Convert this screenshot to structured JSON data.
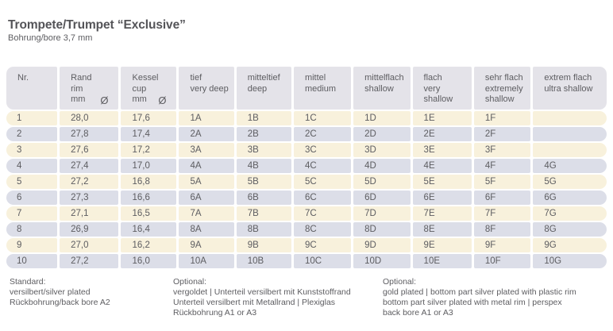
{
  "page": {
    "title": "Trompete/Trumpet “Exclusive”",
    "subtitle": "Bohrung/bore 3,7 mm"
  },
  "colors": {
    "header_bg": "#e4e3e9",
    "row_odd_bg": "#f8f1dc",
    "row_even_bg": "#dcdee8",
    "text": "#5d5d61",
    "title": "#545458"
  },
  "table": {
    "diameter_symbol": "Ø",
    "columns": [
      {
        "id": "nr",
        "lines": [
          "Nr."
        ],
        "diameter": false
      },
      {
        "id": "rand",
        "lines": [
          "Rand",
          "rim",
          "mm"
        ],
        "diameter": true
      },
      {
        "id": "kessel",
        "lines": [
          "Kessel",
          "cup",
          "mm"
        ],
        "diameter": true
      },
      {
        "id": "tief",
        "lines": [
          "tief",
          "very deep"
        ],
        "diameter": false
      },
      {
        "id": "mitteltief",
        "lines": [
          "mitteltief",
          "deep"
        ],
        "diameter": false
      },
      {
        "id": "mittel",
        "lines": [
          "mittel",
          "medium"
        ],
        "diameter": false
      },
      {
        "id": "mittelflach",
        "lines": [
          "mittelflach",
          "shallow"
        ],
        "diameter": false
      },
      {
        "id": "flach",
        "lines": [
          "flach",
          "very shallow"
        ],
        "diameter": false
      },
      {
        "id": "sehr-flach",
        "lines": [
          "sehr flach",
          "extremely",
          "shallow"
        ],
        "diameter": false
      },
      {
        "id": "extrem-flach",
        "lines": [
          "extrem flach",
          "ultra shallow"
        ],
        "diameter": false
      }
    ],
    "rows": [
      [
        "1",
        "28,0",
        "17,6",
        "1A",
        "1B",
        "1C",
        "1D",
        "1E",
        "1F",
        ""
      ],
      [
        "2",
        "27,8",
        "17,4",
        "2A",
        "2B",
        "2C",
        "2D",
        "2E",
        "2F",
        ""
      ],
      [
        "3",
        "27,6",
        "17,2",
        "3A",
        "3B",
        "3C",
        "3D",
        "3E",
        "3F",
        ""
      ],
      [
        "4",
        "27,4",
        "17,0",
        "4A",
        "4B",
        "4C",
        "4D",
        "4E",
        "4F",
        "4G"
      ],
      [
        "5",
        "27,2",
        "16,8",
        "5A",
        "5B",
        "5C",
        "5D",
        "5E",
        "5F",
        "5G"
      ],
      [
        "6",
        "27,3",
        "16,6",
        "6A",
        "6B",
        "6C",
        "6D",
        "6E",
        "6F",
        "6G"
      ],
      [
        "7",
        "27,1",
        "16,5",
        "7A",
        "7B",
        "7C",
        "7D",
        "7E",
        "7F",
        "7G"
      ],
      [
        "8",
        "26,9",
        "16,4",
        "8A",
        "8B",
        "8C",
        "8D",
        "8E",
        "8F",
        "8G"
      ],
      [
        "9",
        "27,0",
        "16,2",
        "9A",
        "9B",
        "9C",
        "9D",
        "9E",
        "9F",
        "9G"
      ],
      [
        "10",
        "27,2",
        "16,0",
        "10A",
        "10B",
        "10C",
        "10D",
        "10E",
        "10F",
        "10G"
      ]
    ]
  },
  "footnotes": [
    {
      "title": "Standard:",
      "lines": [
        "versilbert/silver plated",
        "Rückbohrung/back bore A2"
      ]
    },
    {
      "title": "Optional:",
      "lines": [
        "vergoldet | Unterteil versilbert mit Kunststoffrand",
        "Unterteil versilbert mit Metallrand | Plexiglas",
        "Rückbohrung A1 or A3"
      ]
    },
    {
      "title": "Optional:",
      "lines": [
        "gold plated | bottom part silver plated with plastic rim",
        "bottom part silver plated with metal rim | perspex",
        "back bore A1 or A3"
      ]
    }
  ]
}
